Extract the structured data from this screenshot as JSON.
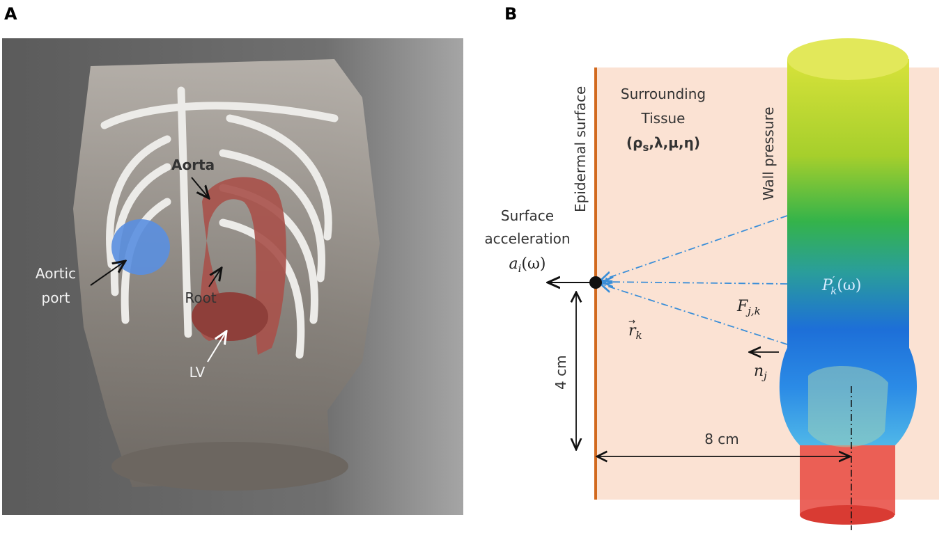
{
  "panels": {
    "a": {
      "label": "A",
      "annotations": {
        "aorta": "Aorta",
        "aortic_port": [
          "Aortic",
          "port"
        ],
        "root": "Root",
        "lv": "LV"
      }
    },
    "b": {
      "label": "B",
      "epidermal_surface": "Epidermal surface",
      "surrounding_tissue": {
        "lines": [
          "Surrounding",
          "Tissue"
        ],
        "params": {
          "open": "(ρ",
          "sub": "s",
          "rest": ",λ,μ,η)"
        }
      },
      "wall_pressure": "Wall pressure",
      "surface_acceleration": {
        "lines": [
          "Surface",
          "acceleration"
        ],
        "symbol": {
          "base": "a",
          "sub": "i",
          "arg": "(ω)"
        }
      },
      "pressure_symbol": {
        "base": "P",
        "sup": "′",
        "sub": "k",
        "arg": "(ω)"
      },
      "force_symbol": {
        "base": "F",
        "sub": "j,k"
      },
      "distance_symbol": {
        "base": "r",
        "accent": "→",
        "sub": "k"
      },
      "normal_symbol": {
        "base": "n",
        "sub": "j"
      },
      "depth": "4 cm",
      "offset": "8 cm"
    }
  }
}
